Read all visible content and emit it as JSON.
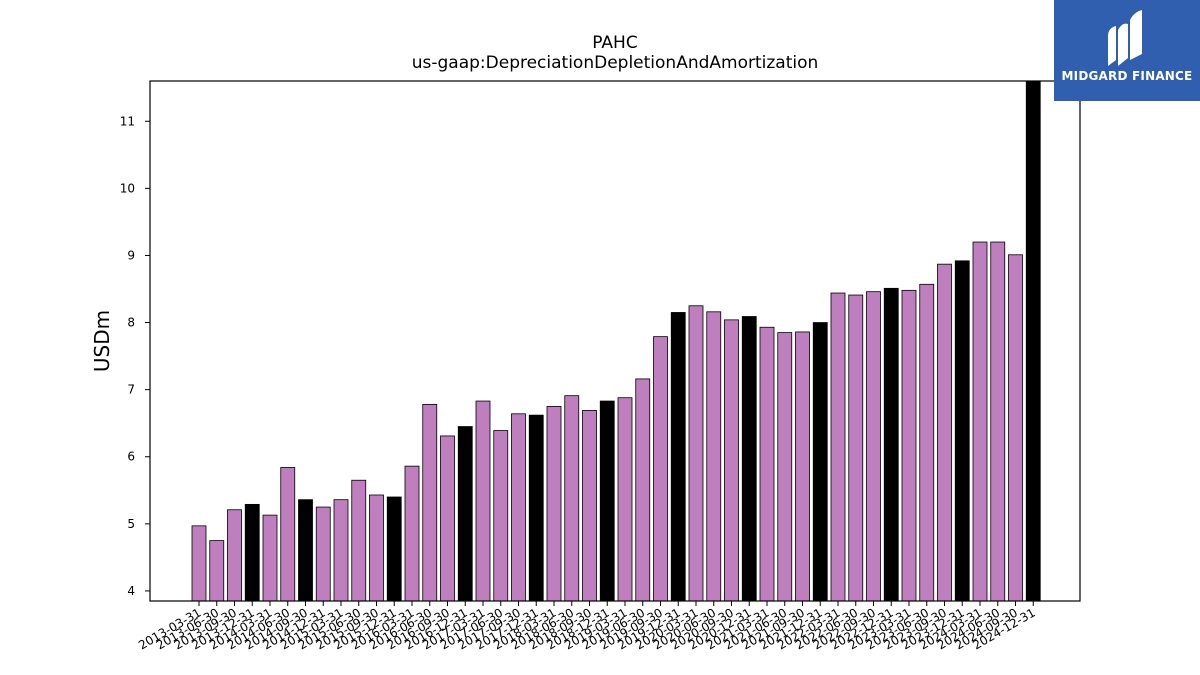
{
  "chart_data": {
    "type": "bar",
    "title": "PAHC",
    "subtitle": "us-gaap:DepreciationDepletionAndAmortization",
    "ylabel": "USDm",
    "ylim": [
      3.85,
      11.6
    ],
    "yticks": [
      "4",
      "5",
      "6",
      "7",
      "8",
      "9",
      "10",
      "11"
    ],
    "grid": false,
    "colors": {
      "quarterly": "#bf7fbf",
      "annual": "#000000",
      "edge": "#000000"
    },
    "categories": [
      "2013-03-31",
      "2013-06-30",
      "2013-09-30",
      "2013-12-31",
      "2014-03-31",
      "2014-06-30",
      "2014-09-30",
      "2014-12-31",
      "2015-03-31",
      "2015-06-30",
      "2015-09-30",
      "2015-12-31",
      "2016-03-31",
      "2016-06-30",
      "2016-09-30",
      "2016-12-31",
      "2017-03-31",
      "2017-06-30",
      "2017-09-30",
      "2017-12-31",
      "2018-03-31",
      "2018-06-30",
      "2018-09-30",
      "2018-12-31",
      "2019-03-31",
      "2019-06-30",
      "2019-09-30",
      "2019-12-31",
      "2020-03-31",
      "2020-06-30",
      "2020-09-30",
      "2020-12-31",
      "2021-03-31",
      "2021-06-30",
      "2021-09-30",
      "2021-12-31",
      "2022-03-31",
      "2022-06-30",
      "2022-09-30",
      "2022-12-31",
      "2023-03-31",
      "2023-06-30",
      "2023-09-30",
      "2023-12-31",
      "2024-03-31",
      "2024-06-30",
      "2024-09-30",
      "2024-12-31"
    ],
    "values": [
      4.97,
      4.75,
      5.21,
      5.29,
      5.13,
      5.84,
      5.36,
      5.25,
      5.36,
      5.65,
      5.43,
      5.4,
      5.86,
      6.78,
      6.31,
      6.45,
      6.83,
      6.39,
      6.64,
      6.62,
      6.75,
      6.91,
      6.69,
      6.83,
      6.88,
      7.16,
      7.79,
      8.15,
      8.25,
      8.16,
      8.04,
      8.09,
      7.93,
      7.85,
      7.86,
      8.0,
      8.44,
      8.41,
      8.46,
      8.51,
      8.48,
      8.57,
      8.87,
      8.92,
      9.2,
      9.2,
      9.01,
      11.6
    ],
    "highlight": [
      false,
      false,
      false,
      true,
      false,
      false,
      true,
      false,
      false,
      false,
      false,
      true,
      false,
      false,
      false,
      true,
      false,
      false,
      false,
      true,
      false,
      false,
      false,
      true,
      false,
      false,
      false,
      true,
      false,
      false,
      false,
      true,
      false,
      false,
      false,
      true,
      false,
      false,
      false,
      true,
      false,
      false,
      false,
      true,
      false,
      false,
      false,
      true
    ]
  },
  "logo": {
    "text": "MIDGARD FINANCE"
  }
}
